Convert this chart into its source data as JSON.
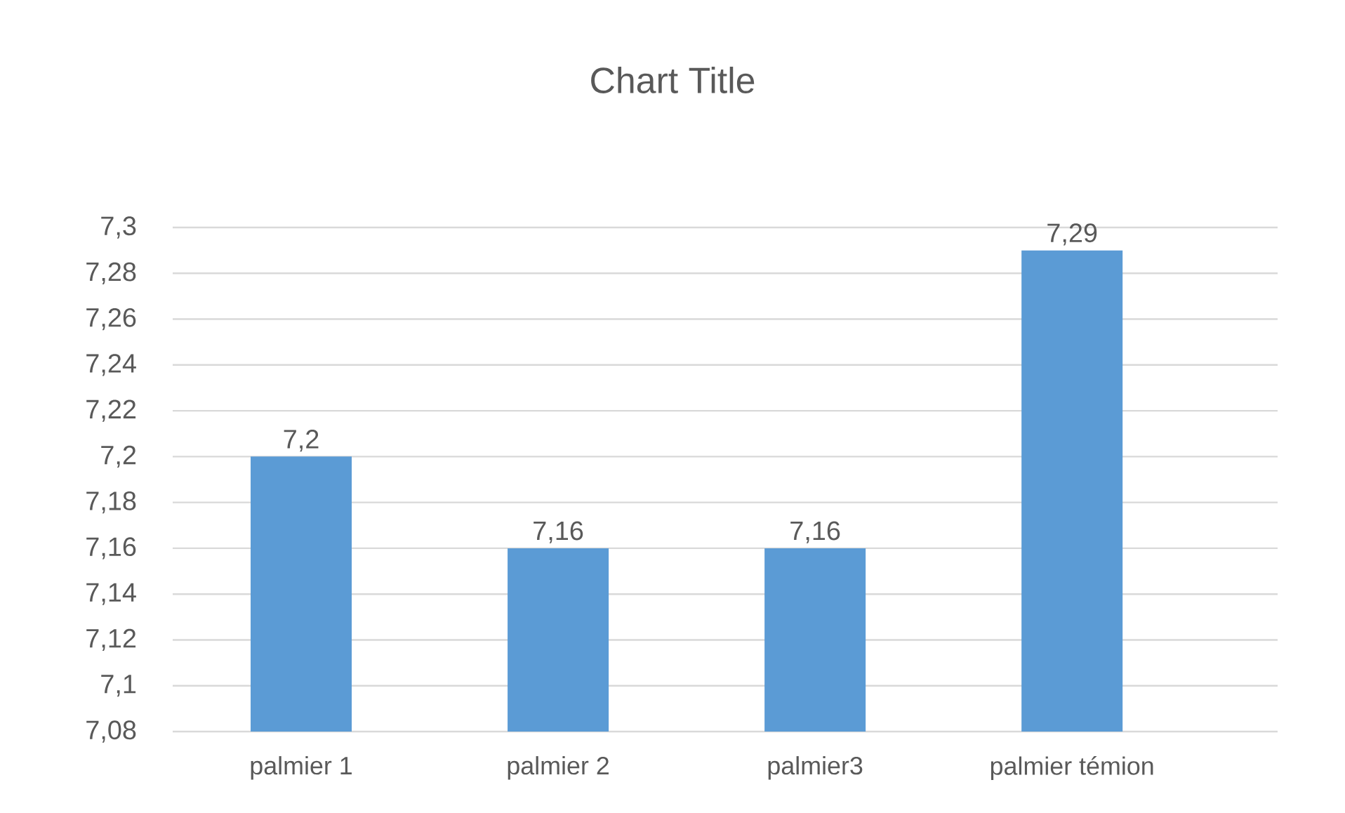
{
  "chart_data": {
    "type": "bar",
    "title": "Chart Title",
    "categories": [
      "palmier 1",
      "palmier 2",
      "palmier3",
      "palmier témion"
    ],
    "values": [
      7.2,
      7.16,
      7.16,
      7.29
    ],
    "color": "#5b9bd5",
    "value_labels": [
      "7,2",
      "7,16",
      "7,16",
      "7,29"
    ],
    "ylim": [
      7.08,
      7.3
    ],
    "yticks": [
      {
        "value": 7.08,
        "label": "7,08"
      },
      {
        "value": 7.1,
        "label": "7,1"
      },
      {
        "value": 7.12,
        "label": "7,12"
      },
      {
        "value": 7.14,
        "label": "7,14"
      },
      {
        "value": 7.16,
        "label": "7,16"
      },
      {
        "value": 7.18,
        "label": "7,18"
      },
      {
        "value": 7.2,
        "label": "7,2"
      },
      {
        "value": 7.22,
        "label": "7,22"
      },
      {
        "value": 7.24,
        "label": "7,24"
      },
      {
        "value": 7.26,
        "label": "7,26"
      },
      {
        "value": 7.28,
        "label": "7,28"
      },
      {
        "value": 7.3,
        "label": "7,3"
      }
    ],
    "grid": "y"
  }
}
